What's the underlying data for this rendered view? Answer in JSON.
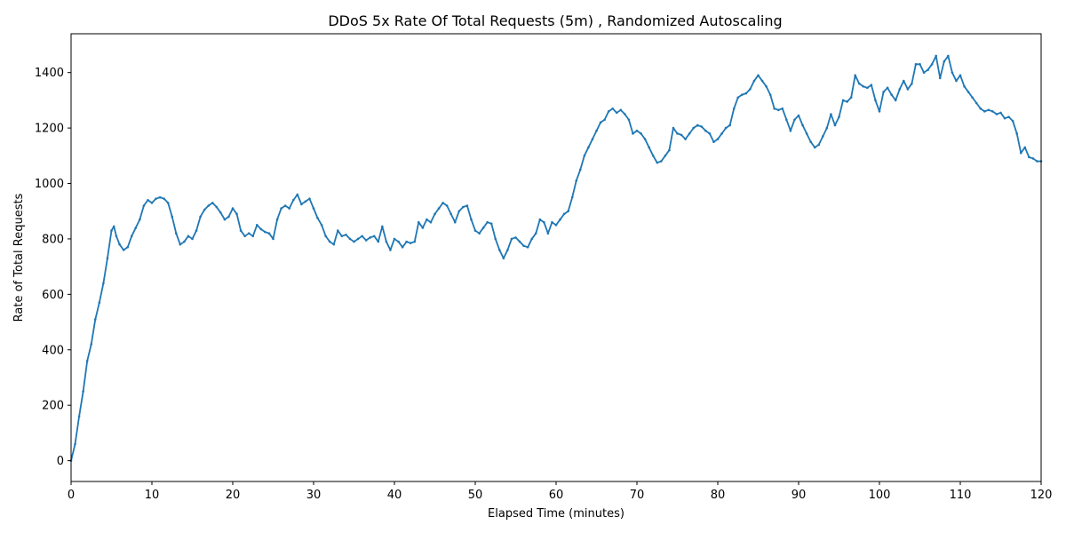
{
  "chart_data": {
    "type": "line",
    "title": "DDoS 5x Rate Of Total Requests (5m) , Randomized Autoscaling",
    "xlabel": "Elapsed Time (minutes)",
    "ylabel": "Rate of Total Requests",
    "xlim": [
      0,
      120
    ],
    "ylim": [
      -75,
      1540
    ],
    "xticks": [
      0,
      10,
      20,
      30,
      40,
      50,
      60,
      70,
      80,
      90,
      100,
      110,
      120
    ],
    "yticks": [
      0,
      200,
      400,
      600,
      800,
      1000,
      1200,
      1400
    ],
    "grid": false,
    "legend": "none",
    "series_color": "#1f77b4",
    "series": [
      {
        "points": [
          [
            0,
            0
          ],
          [
            0.5,
            60
          ],
          [
            1,
            160
          ],
          [
            1.5,
            250
          ],
          [
            2,
            360
          ],
          [
            2.5,
            420
          ],
          [
            3,
            510
          ],
          [
            3.5,
            570
          ],
          [
            4,
            640
          ],
          [
            4.5,
            730
          ],
          [
            5,
            830
          ],
          [
            5.3,
            845
          ],
          [
            5.6,
            810
          ],
          [
            6,
            780
          ],
          [
            6.5,
            760
          ],
          [
            7,
            770
          ],
          [
            7.5,
            810
          ],
          [
            8,
            840
          ],
          [
            8.5,
            870
          ],
          [
            9,
            920
          ],
          [
            9.5,
            940
          ],
          [
            10,
            930
          ],
          [
            10.5,
            945
          ],
          [
            11,
            950
          ],
          [
            11.5,
            945
          ],
          [
            12,
            930
          ],
          [
            12.5,
            880
          ],
          [
            13,
            820
          ],
          [
            13.5,
            780
          ],
          [
            14,
            790
          ],
          [
            14.5,
            810
          ],
          [
            15,
            800
          ],
          [
            15.5,
            830
          ],
          [
            16,
            880
          ],
          [
            16.5,
            905
          ],
          [
            17,
            920
          ],
          [
            17.5,
            930
          ],
          [
            18,
            915
          ],
          [
            18.5,
            895
          ],
          [
            19,
            870
          ],
          [
            19.5,
            880
          ],
          [
            20,
            910
          ],
          [
            20.5,
            890
          ],
          [
            21,
            830
          ],
          [
            21.5,
            810
          ],
          [
            22,
            820
          ],
          [
            22.5,
            810
          ],
          [
            23,
            850
          ],
          [
            23.5,
            835
          ],
          [
            24,
            825
          ],
          [
            24.5,
            820
          ],
          [
            25,
            800
          ],
          [
            25.5,
            870
          ],
          [
            26,
            910
          ],
          [
            26.5,
            920
          ],
          [
            27,
            910
          ],
          [
            27.5,
            940
          ],
          [
            28,
            960
          ],
          [
            28.5,
            925
          ],
          [
            29,
            935
          ],
          [
            29.5,
            945
          ],
          [
            30,
            910
          ],
          [
            30.5,
            875
          ],
          [
            31,
            850
          ],
          [
            31.5,
            810
          ],
          [
            32,
            790
          ],
          [
            32.5,
            780
          ],
          [
            33,
            830
          ],
          [
            33.5,
            810
          ],
          [
            34,
            815
          ],
          [
            34.5,
            800
          ],
          [
            35,
            790
          ],
          [
            35.5,
            800
          ],
          [
            36,
            810
          ],
          [
            36.5,
            795
          ],
          [
            37,
            805
          ],
          [
            37.5,
            810
          ],
          [
            38,
            790
          ],
          [
            38.5,
            845
          ],
          [
            39,
            790
          ],
          [
            39.5,
            760
          ],
          [
            40,
            800
          ],
          [
            40.5,
            790
          ],
          [
            41,
            770
          ],
          [
            41.5,
            790
          ],
          [
            42,
            785
          ],
          [
            42.5,
            790
          ],
          [
            43,
            860
          ],
          [
            43.5,
            840
          ],
          [
            44,
            870
          ],
          [
            44.5,
            860
          ],
          [
            45,
            890
          ],
          [
            45.5,
            910
          ],
          [
            46,
            930
          ],
          [
            46.5,
            920
          ],
          [
            47,
            890
          ],
          [
            47.5,
            860
          ],
          [
            48,
            900
          ],
          [
            48.5,
            915
          ],
          [
            49,
            920
          ],
          [
            49.5,
            870
          ],
          [
            50,
            830
          ],
          [
            50.5,
            820
          ],
          [
            51,
            840
          ],
          [
            51.5,
            860
          ],
          [
            52,
            855
          ],
          [
            52.5,
            800
          ],
          [
            53,
            760
          ],
          [
            53.5,
            730
          ],
          [
            54,
            760
          ],
          [
            54.5,
            800
          ],
          [
            55,
            805
          ],
          [
            55.5,
            790
          ],
          [
            56,
            775
          ],
          [
            56.5,
            770
          ],
          [
            57,
            800
          ],
          [
            57.5,
            820
          ],
          [
            58,
            870
          ],
          [
            58.5,
            860
          ],
          [
            59,
            820
          ],
          [
            59.5,
            860
          ],
          [
            60,
            850
          ],
          [
            60.5,
            870
          ],
          [
            61,
            890
          ],
          [
            61.5,
            900
          ],
          [
            62,
            950
          ],
          [
            62.5,
            1010
          ],
          [
            63,
            1050
          ],
          [
            63.5,
            1100
          ],
          [
            64,
            1130
          ],
          [
            64.5,
            1160
          ],
          [
            65,
            1190
          ],
          [
            65.5,
            1220
          ],
          [
            66,
            1230
          ],
          [
            66.5,
            1260
          ],
          [
            67,
            1270
          ],
          [
            67.5,
            1255
          ],
          [
            68,
            1265
          ],
          [
            68.5,
            1250
          ],
          [
            69,
            1230
          ],
          [
            69.5,
            1180
          ],
          [
            70,
            1190
          ],
          [
            70.5,
            1180
          ],
          [
            71,
            1160
          ],
          [
            71.5,
            1130
          ],
          [
            72,
            1100
          ],
          [
            72.5,
            1075
          ],
          [
            73,
            1080
          ],
          [
            73.5,
            1100
          ],
          [
            74,
            1120
          ],
          [
            74.5,
            1200
          ],
          [
            75,
            1180
          ],
          [
            75.5,
            1175
          ],
          [
            76,
            1160
          ],
          [
            76.5,
            1180
          ],
          [
            77,
            1200
          ],
          [
            77.5,
            1210
          ],
          [
            78,
            1205
          ],
          [
            78.5,
            1190
          ],
          [
            79,
            1180
          ],
          [
            79.5,
            1150
          ],
          [
            80,
            1160
          ],
          [
            80.5,
            1180
          ],
          [
            81,
            1200
          ],
          [
            81.5,
            1210
          ],
          [
            82,
            1270
          ],
          [
            82.5,
            1310
          ],
          [
            83,
            1320
          ],
          [
            83.5,
            1325
          ],
          [
            84,
            1340
          ],
          [
            84.5,
            1370
          ],
          [
            85,
            1390
          ],
          [
            85.5,
            1370
          ],
          [
            86,
            1350
          ],
          [
            86.5,
            1320
          ],
          [
            87,
            1270
          ],
          [
            87.5,
            1265
          ],
          [
            88,
            1270
          ],
          [
            88.5,
            1230
          ],
          [
            89,
            1190
          ],
          [
            89.5,
            1230
          ],
          [
            90,
            1245
          ],
          [
            90.5,
            1210
          ],
          [
            91,
            1180
          ],
          [
            91.5,
            1150
          ],
          [
            92,
            1130
          ],
          [
            92.5,
            1140
          ],
          [
            93,
            1170
          ],
          [
            93.5,
            1200
          ],
          [
            94,
            1250
          ],
          [
            94.5,
            1210
          ],
          [
            95,
            1240
          ],
          [
            95.5,
            1300
          ],
          [
            96,
            1295
          ],
          [
            96.5,
            1310
          ],
          [
            97,
            1390
          ],
          [
            97.5,
            1360
          ],
          [
            98,
            1350
          ],
          [
            98.5,
            1345
          ],
          [
            99,
            1355
          ],
          [
            99.5,
            1300
          ],
          [
            100,
            1260
          ],
          [
            100.5,
            1330
          ],
          [
            101,
            1345
          ],
          [
            101.5,
            1320
          ],
          [
            102,
            1300
          ],
          [
            102.5,
            1340
          ],
          [
            103,
            1370
          ],
          [
            103.5,
            1340
          ],
          [
            104,
            1360
          ],
          [
            104.5,
            1430
          ],
          [
            105,
            1430
          ],
          [
            105.5,
            1400
          ],
          [
            106,
            1410
          ],
          [
            106.5,
            1430
          ],
          [
            107,
            1460
          ],
          [
            107.5,
            1380
          ],
          [
            108,
            1440
          ],
          [
            108.5,
            1460
          ],
          [
            109,
            1400
          ],
          [
            109.5,
            1370
          ],
          [
            110,
            1390
          ],
          [
            110.5,
            1350
          ],
          [
            111,
            1330
          ],
          [
            111.5,
            1310
          ],
          [
            112,
            1290
          ],
          [
            112.5,
            1270
          ],
          [
            113,
            1260
          ],
          [
            113.5,
            1265
          ],
          [
            114,
            1260
          ],
          [
            114.5,
            1250
          ],
          [
            115,
            1255
          ],
          [
            115.5,
            1235
          ],
          [
            116,
            1240
          ],
          [
            116.5,
            1225
          ],
          [
            117,
            1180
          ],
          [
            117.5,
            1110
          ],
          [
            118,
            1130
          ],
          [
            118.5,
            1095
          ],
          [
            119,
            1090
          ],
          [
            119.5,
            1080
          ],
          [
            120,
            1080
          ]
        ]
      }
    ]
  }
}
